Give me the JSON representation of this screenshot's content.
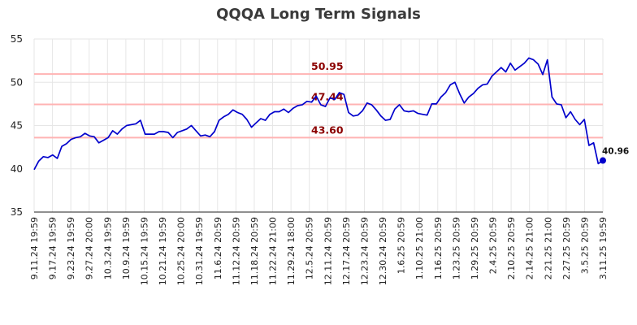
{
  "chart_data": {
    "type": "line",
    "title": "QQQA Long Term Signals",
    "xlabel": "",
    "ylabel": "",
    "ylim": [
      35,
      55
    ],
    "yticks": [
      35,
      40,
      45,
      50,
      55
    ],
    "grid": true,
    "line_color": "#0000cc",
    "level_line_color": "#ffb3b3",
    "level_label_color": "#8b0000",
    "x_tick_labels": [
      "9.11.24 19:59",
      "9.17.24 19:59",
      "9.23.24 19:59",
      "9.27.24 20:00",
      "10.3.24 19:59",
      "10.9.24 19:59",
      "10.15.24 19:59",
      "10.21.24 19:59",
      "10.25.24 20:00",
      "10.31.24 19:59",
      "11.6.24 20:59",
      "11.12.24 20:59",
      "11.18.24 20:59",
      "11.22.24 21:00",
      "11.29.24 18:00",
      "12.5.24 20:59",
      "12.11.24 20:59",
      "12.17.24 20:59",
      "12.23.24 20:59",
      "12.30.24 20:59",
      "1.6.25 20:59",
      "1.10.25 21:00",
      "1.16.25 20:59",
      "1.23.25 20:59",
      "1.29.25 20:59",
      "2.4.25 20:59",
      "2.10.25 20:59",
      "2.14.25 21:00",
      "2.21.25 21:00",
      "2.27.25 20:59",
      "3.5.25 20:59",
      "3.11.25 19:59"
    ],
    "levels": [
      {
        "value": 50.95,
        "label": "50.95"
      },
      {
        "value": 47.44,
        "label": "47.44"
      },
      {
        "value": 43.6,
        "label": "43.60"
      }
    ],
    "series": [
      {
        "values": [
          39.9,
          40.9,
          41.4,
          41.3,
          41.6,
          41.2,
          42.6,
          42.9,
          43.4,
          43.6,
          43.7,
          44.1,
          43.8,
          43.7,
          43.0,
          43.3,
          43.6,
          44.4,
          44.0,
          44.6,
          45.0,
          45.1,
          45.2,
          45.6,
          44.0,
          44.0,
          44.0,
          44.3,
          44.3,
          44.2,
          43.6,
          44.2,
          44.4,
          44.6,
          45.0,
          44.4,
          43.8,
          43.9,
          43.7,
          44.3,
          45.6,
          46.0,
          46.3,
          46.8,
          46.5,
          46.3,
          45.7,
          44.8,
          45.3,
          45.8,
          45.6,
          46.3,
          46.6,
          46.6,
          46.9,
          46.5,
          47.0,
          47.3,
          47.4,
          47.8,
          47.7,
          48.4,
          47.4,
          47.2,
          48.2,
          48.0,
          48.8,
          48.6,
          46.5,
          46.1,
          46.2,
          46.7,
          47.6,
          47.4,
          46.8,
          46.1,
          45.6,
          45.7,
          46.9,
          47.4,
          46.7,
          46.6,
          46.7,
          46.4,
          46.3,
          46.2,
          47.5,
          47.5,
          48.3,
          48.8,
          49.7,
          50.0,
          48.7,
          47.6,
          48.3,
          48.7,
          49.3,
          49.7,
          49.8,
          50.7,
          51.2,
          51.7,
          51.2,
          52.2,
          51.4,
          51.8,
          52.2,
          52.8,
          52.6,
          52.1,
          50.9,
          52.6,
          48.3,
          47.5,
          47.4,
          45.9,
          46.6,
          45.7,
          45.1,
          45.7,
          42.7,
          43.0,
          40.6,
          40.96
        ]
      }
    ],
    "last_value_label": "40.96"
  }
}
